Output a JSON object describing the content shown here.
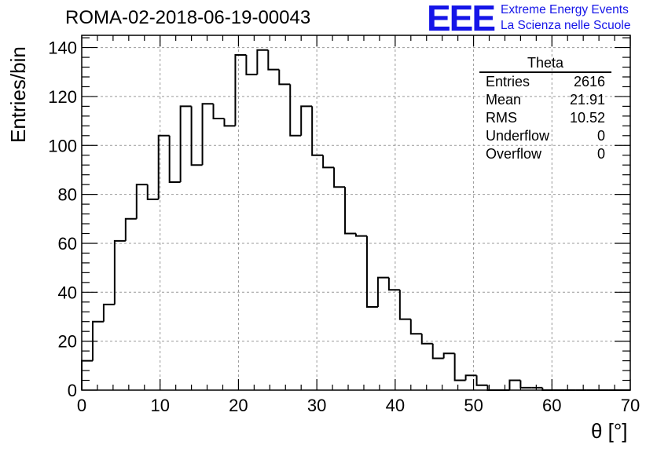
{
  "title": "ROMA-02-2018-06-19-00043",
  "logo": {
    "mark": "EEE",
    "line1": "Extreme Energy Events",
    "line2": "La Scienza nelle Scuole",
    "color": "#1515e8"
  },
  "stats": {
    "title": "Theta",
    "rows": [
      {
        "label": "Entries",
        "value": "2616"
      },
      {
        "label": "Mean",
        "value": "21.91"
      },
      {
        "label": "RMS",
        "value": "10.52"
      },
      {
        "label": "Underflow",
        "value": "0"
      },
      {
        "label": "Overflow",
        "value": "0"
      }
    ]
  },
  "chart_data": {
    "type": "histogram",
    "title": "ROMA-02-2018-06-19-00043",
    "xlabel": "θ [°]",
    "ylabel": "Entries/bin",
    "xlim": [
      0,
      70
    ],
    "ylim": [
      0,
      145
    ],
    "bin_width": 1.4,
    "bin_start": 0,
    "values": [
      12,
      28,
      35,
      61,
      70,
      84,
      78,
      104,
      85,
      116,
      92,
      117,
      111,
      108,
      137,
      129,
      139,
      131,
      125,
      104,
      116,
      96,
      91,
      83,
      64,
      63,
      34,
      46,
      41,
      29,
      23,
      19,
      13,
      15,
      4,
      6,
      2,
      0,
      0,
      4,
      1,
      1,
      0,
      0,
      0,
      0,
      0,
      0,
      0,
      0
    ],
    "x_ticks": [
      0,
      10,
      20,
      30,
      40,
      50,
      60,
      70
    ],
    "y_ticks": [
      0,
      20,
      40,
      60,
      80,
      100,
      120,
      140
    ],
    "grid": true,
    "line_color": "#000000"
  }
}
